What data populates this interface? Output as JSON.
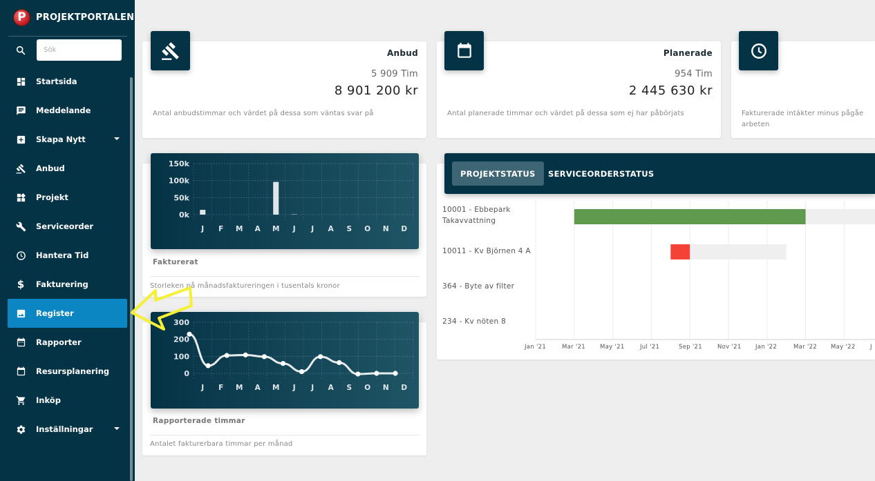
{
  "app": {
    "title": "PROJEKTPORTALEN",
    "logo_letter": "P"
  },
  "search": {
    "placeholder": "Sök"
  },
  "sidebar": {
    "items": [
      {
        "label": "Startsida",
        "icon": "dashboard-icon"
      },
      {
        "label": "Meddelande",
        "icon": "message-icon"
      },
      {
        "label": "Skapa Nytt",
        "icon": "add-box-icon",
        "has_submenu": true
      },
      {
        "label": "Anbud",
        "icon": "gavel-icon"
      },
      {
        "label": "Projekt",
        "icon": "widgets-icon"
      },
      {
        "label": "Serviceorder",
        "icon": "wrench-icon"
      },
      {
        "label": "Hantera Tid",
        "icon": "clock-icon"
      },
      {
        "label": "Fakturering",
        "icon": "dollar-icon"
      },
      {
        "label": "Register",
        "icon": "image-icon",
        "active": true
      },
      {
        "label": "Rapporter",
        "icon": "calendar-view-icon"
      },
      {
        "label": "Resursplanering",
        "icon": "calendar-icon"
      },
      {
        "label": "Inköp",
        "icon": "cart-icon"
      },
      {
        "label": "Inställningar",
        "icon": "gear-icon",
        "has_submenu": true
      }
    ]
  },
  "stats": {
    "anbud": {
      "title": "Anbud",
      "hours": "5 909 Tim",
      "amount": "8 901 200 kr",
      "description": "Antal anbudstimmar och värdet på dessa som väntas svar på",
      "icon": "gavel-icon"
    },
    "planerade": {
      "title": "Planerade",
      "hours": "954 Tim",
      "amount": "2 445 630 kr",
      "description": "Antal planerade timmar och värdet på dessa som ej har påbörjats",
      "icon": "calendar-icon"
    },
    "third": {
      "description_line1": "Fakturerade intäkter minus pågåe",
      "description_line2": "arbeten",
      "icon": "clock-icon"
    }
  },
  "fakturerat": {
    "caption": "Fakturerat",
    "description": "Storleken på månadsfaktureringen i tusentals kronor"
  },
  "rapporterade": {
    "caption": "Rapporterade timmar",
    "description": "Antalet fakturerbara timmar per månad"
  },
  "chart_data": [
    {
      "type": "bar",
      "categories": [
        "J",
        "F",
        "M",
        "A",
        "M",
        "J",
        "J",
        "A",
        "S",
        "O",
        "N",
        "D"
      ],
      "values": [
        14,
        0,
        0,
        0,
        96,
        1,
        0,
        0,
        0,
        0,
        0,
        0
      ],
      "yticks": [
        "0k",
        "50k",
        "100k",
        "150k"
      ],
      "ylim": [
        0,
        150
      ],
      "grid": true
    },
    {
      "type": "line",
      "categories": [
        "J",
        "F",
        "M",
        "A",
        "M",
        "J",
        "J",
        "A",
        "S",
        "O",
        "N",
        "D"
      ],
      "values": [
        230,
        45,
        105,
        108,
        98,
        58,
        10,
        98,
        63,
        -4,
        0,
        0
      ],
      "yticks": [
        "0",
        "100",
        "200",
        "300"
      ],
      "ylim": [
        0,
        300
      ],
      "grid": true
    }
  ],
  "project_status": {
    "tabs": [
      "PROJEKTSTATUS",
      "SERVICEORDERSTATUS"
    ],
    "rows": [
      {
        "label": "10001 - Ebbepark Takavvattning",
        "bar_color": "#5f9a4e",
        "start": "2021-03",
        "progress_end": "2022-03",
        "end": "2022-07"
      },
      {
        "label": "10011 - Kv Björnen 4 A",
        "bar_color": "#f44336",
        "start": "2021-08",
        "progress_end": "2021-09",
        "end": "2022-02"
      },
      {
        "label": "364 - Byte av filter"
      },
      {
        "label": "234 - Kv nöten 8"
      }
    ],
    "x_ticks": [
      "Jan '21",
      "Mar '21",
      "May '21",
      "Jul '21",
      "Sep '21",
      "Nov '21",
      "Jan '22",
      "Mar '22",
      "May '22",
      "J"
    ]
  },
  "colors": {
    "sidebar": "#053346",
    "active": "#0b86c3",
    "green": "#5f9a4e",
    "red": "#f44336",
    "arrow": "#f5f035"
  }
}
